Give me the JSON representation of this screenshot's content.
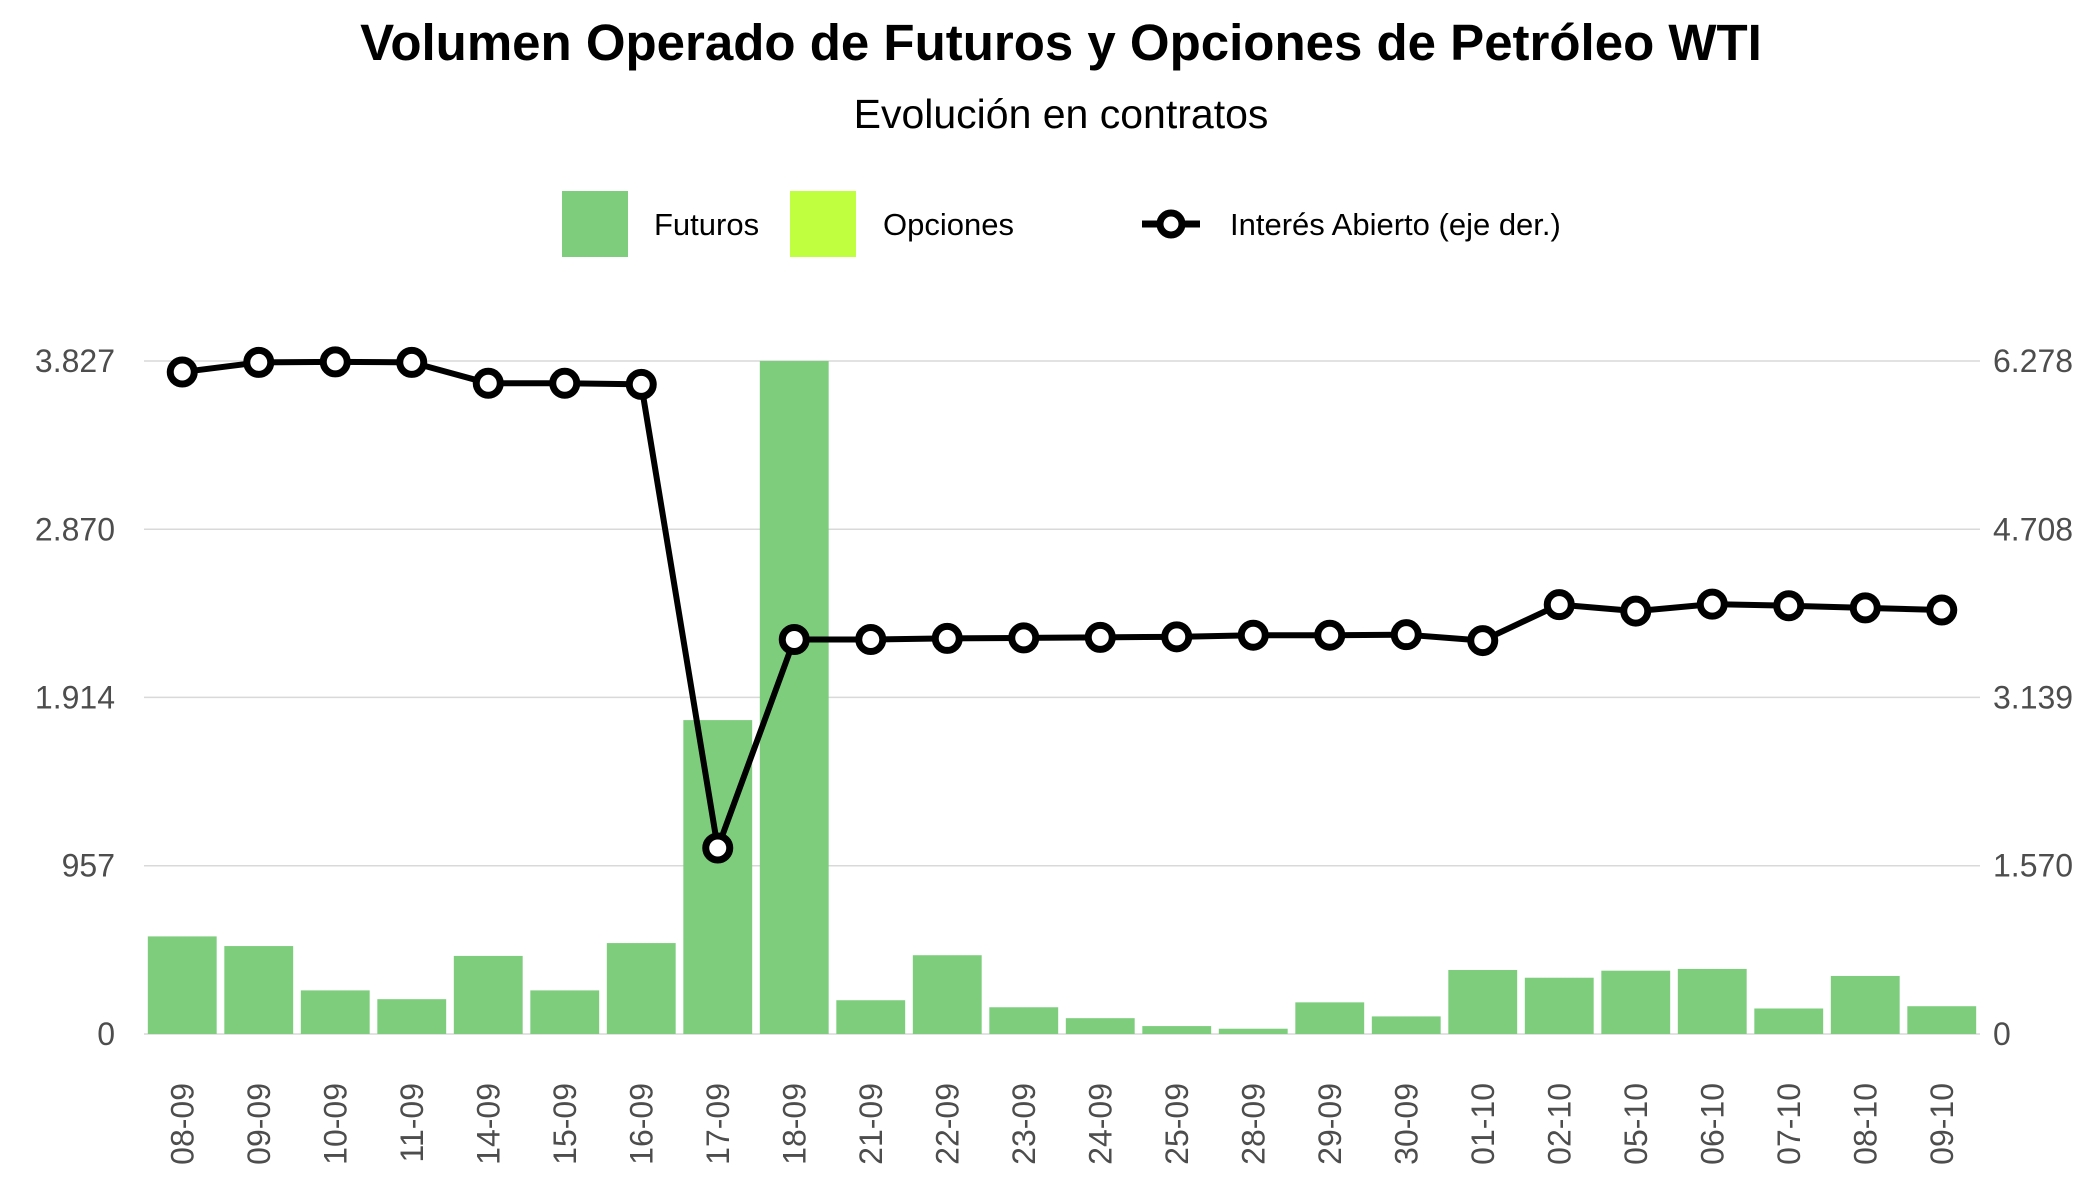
{
  "chart_data": {
    "type": "bar",
    "title": "Volumen Operado de Futuros y Opciones de Petróleo WTI",
    "subtitle": "Evolución en contratos",
    "categories": [
      "08-09",
      "09-09",
      "10-09",
      "11-09",
      "14-09",
      "15-09",
      "16-09",
      "17-09",
      "18-09",
      "21-09",
      "22-09",
      "23-09",
      "24-09",
      "25-09",
      "28-09",
      "29-09",
      "30-09",
      "01-10",
      "02-10",
      "05-10",
      "06-10",
      "07-10",
      "08-10",
      "09-10"
    ],
    "legend": {
      "position": "top",
      "entries": [
        "Futuros",
        "Opciones",
        "Interés Abierto (eje der.)"
      ]
    },
    "grid": true,
    "y_left": {
      "ticks": [
        0,
        957,
        1914,
        2870,
        3827
      ],
      "tick_labels": [
        "0",
        "957",
        "1.914",
        "2.870",
        "3.827"
      ],
      "lim": [
        0,
        3827
      ]
    },
    "y_right": {
      "ticks": [
        0,
        1570,
        3139,
        4708,
        6278
      ],
      "tick_labels": [
        "0",
        "1.570",
        "3.139",
        "4.708",
        "6.278"
      ],
      "lim": [
        0,
        6278
      ]
    },
    "series": [
      {
        "name": "Futuros",
        "type": "bar",
        "axis": "left",
        "color": "#7dcd7d",
        "values": [
          555,
          500,
          248,
          198,
          444,
          248,
          517,
          1785,
          3827,
          192,
          448,
          152,
          90,
          45,
          30,
          180,
          100,
          364,
          320,
          360,
          370,
          145,
          330,
          158
        ]
      },
      {
        "name": "Opciones",
        "type": "bar",
        "axis": "left",
        "color": "#bfff40",
        "values": [
          0,
          0,
          0,
          0,
          0,
          0,
          0,
          0,
          0,
          0,
          0,
          0,
          0,
          0,
          0,
          0,
          0,
          0,
          0,
          0,
          0,
          0,
          0,
          0
        ]
      },
      {
        "name": "Interés Abierto (eje der.)",
        "type": "line",
        "axis": "right",
        "color": "#000000",
        "values": [
          6175,
          6265,
          6270,
          6265,
          6070,
          6070,
          6060,
          1735,
          3680,
          3680,
          3690,
          3695,
          3700,
          3705,
          3720,
          3720,
          3725,
          3670,
          4005,
          3945,
          4010,
          3995,
          3975,
          3955
        ]
      }
    ]
  }
}
